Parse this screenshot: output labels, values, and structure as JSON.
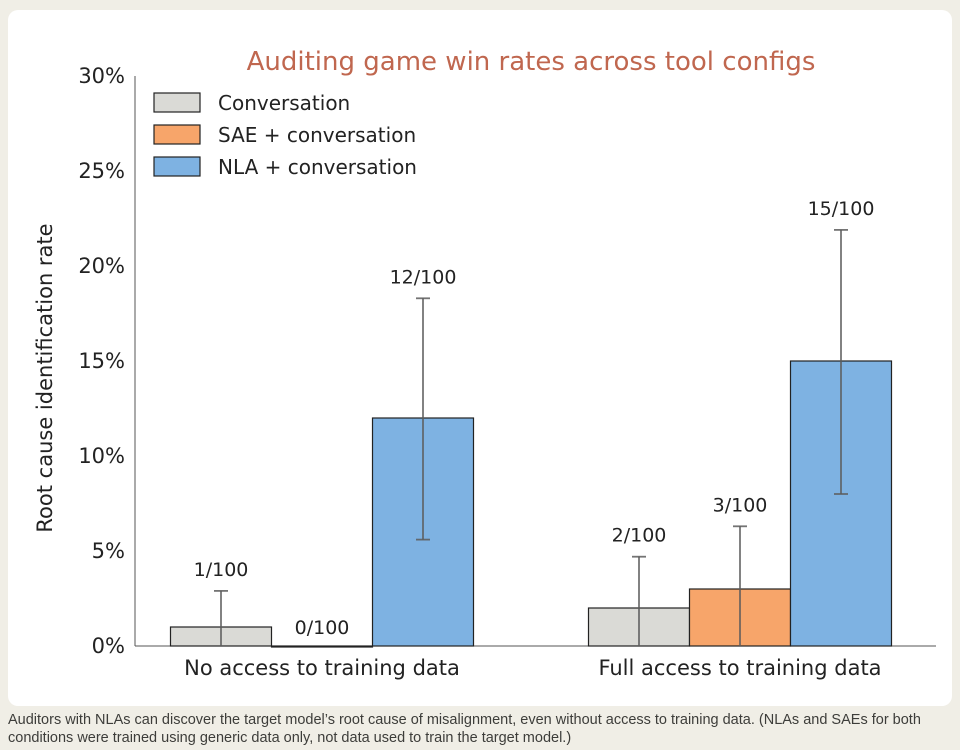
{
  "chart_data": {
    "type": "bar",
    "title": "Auditing game win rates across tool configs",
    "ylabel": "Root cause identification rate",
    "xlabel": "",
    "categories": [
      "No access to training data",
      "Full access to training data"
    ],
    "ylim": [
      0,
      30
    ],
    "yticks": [
      "0%",
      "5%",
      "10%",
      "15%",
      "20%",
      "25%",
      "30%"
    ],
    "grid": false,
    "legend_position": "top-left",
    "series": [
      {
        "name": "Conversation",
        "color": "#dadad6",
        "values": [
          1,
          2
        ],
        "labels": [
          "1/100",
          "2/100"
        ],
        "err_low": [
          0,
          0
        ],
        "err_high": [
          2.9,
          4.7
        ]
      },
      {
        "name": "SAE + conversation",
        "color": "#f7a56a",
        "values": [
          0,
          3
        ],
        "labels": [
          "0/100",
          "3/100"
        ],
        "err_low": [
          0,
          0
        ],
        "err_high": [
          0,
          6.3
        ]
      },
      {
        "name": "NLA + conversation",
        "color": "#7eb2e2",
        "values": [
          12,
          15
        ],
        "labels": [
          "12/100",
          "15/100"
        ],
        "err_low": [
          5.6,
          8.0
        ],
        "err_high": [
          18.3,
          21.9
        ]
      }
    ]
  },
  "caption": "Auditors with NLAs can discover the target model’s root cause of misalignment, even without access to training data. (NLAs and SAEs for both conditions were trained using generic data only, not data used to train the target model.)"
}
